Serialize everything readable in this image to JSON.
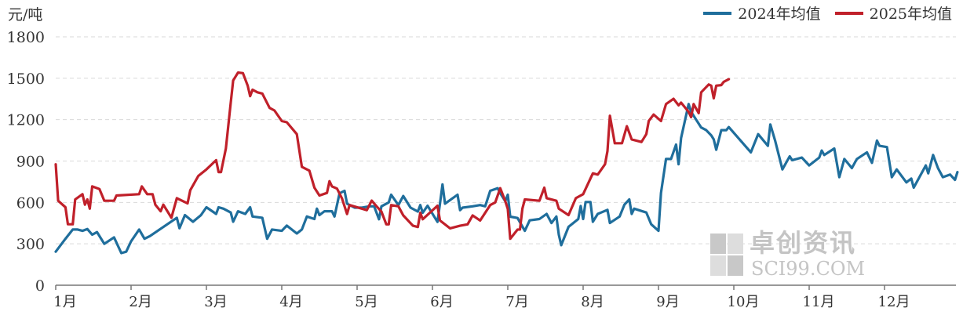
{
  "chart_data": {
    "type": "line",
    "unit_label": "元/吨",
    "yticks": [
      "0",
      "300",
      "600",
      "900",
      "1200",
      "1500",
      "1800"
    ],
    "ylim": [
      0,
      1800
    ],
    "xticks": [
      "1月",
      "2月",
      "3月",
      "4月",
      "5月",
      "6月",
      "7月",
      "8月",
      "9月",
      "10月",
      "11月",
      "12月"
    ],
    "grid": "horizontal dashed",
    "legend_position": "top-right",
    "series": [
      {
        "name": "2024年均值",
        "color": "#1f6e9c",
        "x": [
          "01-01",
          "01-05",
          "01-08",
          "01-10",
          "01-12",
          "01-14",
          "01-16",
          "01-18",
          "01-21",
          "01-25",
          "01-28",
          "01-30",
          "02-01",
          "02-04",
          "02-06",
          "02-08",
          "02-18",
          "02-19",
          "02-21",
          "02-24",
          "02-27",
          "03-01",
          "03-05",
          "03-06",
          "03-08",
          "03-11",
          "03-12",
          "03-14",
          "03-17",
          "03-19",
          "03-20",
          "03-24",
          "03-26",
          "03-28",
          "04-01",
          "04-03",
          "04-07",
          "04-09",
          "04-11",
          "04-14",
          "04-15",
          "04-16",
          "04-18",
          "04-21",
          "04-22",
          "04-24",
          "04-26",
          "04-27",
          "04-30",
          "05-03",
          "05-06",
          "05-08",
          "05-10",
          "05-11",
          "05-14",
          "05-15",
          "05-18",
          "05-20",
          "05-23",
          "05-26",
          "05-27",
          "05-28",
          "05-30",
          "06-03",
          "06-04",
          "06-05",
          "06-06",
          "06-11",
          "06-12",
          "06-13",
          "06-17",
          "06-20",
          "06-22",
          "06-24",
          "06-27",
          "06-28",
          "06-30",
          "07-01",
          "07-02",
          "07-05",
          "07-08",
          "07-10",
          "07-14",
          "07-17",
          "07-19",
          "07-21",
          "07-22",
          "07-23",
          "07-26",
          "07-30",
          "07-31",
          "08-01",
          "08-02",
          "08-04",
          "08-05",
          "08-07",
          "08-11",
          "08-12",
          "08-16",
          "08-18",
          "08-20",
          "08-21",
          "08-22",
          "08-27",
          "08-29",
          "09-01",
          "09-02",
          "09-04",
          "09-06",
          "09-08",
          "09-09",
          "09-10",
          "09-13",
          "09-14",
          "09-18",
          "09-20",
          "09-22",
          "09-23",
          "09-24",
          "09-26",
          "09-28",
          "09-29",
          "10-08",
          "10-11",
          "10-15",
          "10-16",
          "10-18",
          "10-21",
          "10-24",
          "10-25",
          "10-29",
          "11-01",
          "11-05",
          "11-06",
          "11-07",
          "11-11",
          "11-13",
          "11-15",
          "11-18",
          "11-20",
          "11-24",
          "11-26",
          "11-28",
          "11-29",
          "12-02",
          "12-04",
          "12-06",
          "12-10",
          "12-12",
          "12-13",
          "12-18",
          "12-19",
          "12-21",
          "12-23",
          "12-25",
          "12-28",
          "12-30",
          "12-31"
        ],
        "y": [
          243,
          337,
          404,
          404,
          394,
          407,
          366,
          385,
          300,
          347,
          233,
          243,
          318,
          404,
          337,
          356,
          489,
          413,
          508,
          460,
          508,
          565,
          517,
          565,
          555,
          527,
          460,
          536,
          517,
          565,
          498,
          489,
          337,
          404,
          394,
          432,
          375,
          404,
          498,
          480,
          555,
          508,
          536,
          536,
          498,
          666,
          684,
          591,
          562,
          562,
          572,
          572,
          478,
          572,
          600,
          656,
          581,
          647,
          562,
          534,
          581,
          525,
          576,
          459,
          591,
          731,
          591,
          656,
          544,
          562,
          572,
          581,
          572,
          684,
          703,
          666,
          609,
          656,
          497,
          487,
          394,
          470,
          480,
          517,
          451,
          498,
          366,
          290,
          423,
          480,
          574,
          480,
          603,
          603,
          460,
          517,
          546,
          451,
          498,
          584,
          622,
          517,
          555,
          527,
          442,
          394,
          669,
          915,
          915,
          1019,
          877,
          1067,
          1313,
          1256,
          1143,
          1124,
          1086,
          1057,
          982,
          1124,
          1124,
          1146,
          963,
          1095,
          1010,
          1165,
          1048,
          839,
          934,
          906,
          925,
          868,
          925,
          976,
          944,
          991,
          783,
          915,
          849,
          915,
          963,
          887,
          1048,
          1010,
          1001,
          783,
          839,
          745,
          773,
          707,
          868,
          811,
          944,
          849,
          783,
          802,
          764,
          820
        ]
      },
      {
        "name": "2025年均值",
        "color": "#c0202a",
        "x": [
          "01-01",
          "01-02",
          "01-05",
          "01-06",
          "01-08",
          "01-09",
          "01-12",
          "01-13",
          "01-14",
          "01-15",
          "01-16",
          "01-19",
          "01-21",
          "01-25",
          "01-26",
          "02-04",
          "02-05",
          "02-07",
          "02-09",
          "02-10",
          "02-12",
          "02-13",
          "02-16",
          "02-18",
          "02-22",
          "02-23",
          "02-26",
          "03-01",
          "03-05",
          "03-06",
          "03-07",
          "03-09",
          "03-11",
          "03-12",
          "03-14",
          "03-16",
          "03-18",
          "03-19",
          "03-20",
          "03-22",
          "03-24",
          "03-27",
          "03-29",
          "04-01",
          "04-03",
          "04-07",
          "04-09",
          "04-12",
          "04-14",
          "04-16",
          "04-19",
          "04-20",
          "04-21",
          "04-23",
          "04-25",
          "04-27",
          "04-28",
          "05-05",
          "05-07",
          "05-09",
          "05-11",
          "05-13",
          "05-14",
          "05-15",
          "05-18",
          "05-20",
          "05-24",
          "05-26",
          "05-27",
          "05-28",
          "06-03",
          "06-04",
          "06-08",
          "06-12",
          "06-15",
          "06-17",
          "06-20",
          "06-24",
          "06-26",
          "06-28",
          "06-30",
          "07-01",
          "07-02",
          "07-05",
          "07-06",
          "07-07",
          "07-08",
          "07-14",
          "07-16",
          "07-17",
          "07-21",
          "07-22",
          "07-26",
          "07-29",
          "08-01",
          "08-05",
          "08-07",
          "08-10",
          "08-11",
          "08-12",
          "08-14",
          "08-17",
          "08-19",
          "08-21",
          "08-25",
          "08-27",
          "08-28",
          "08-30",
          "09-02",
          "09-04",
          "09-07",
          "09-09",
          "09-10",
          "09-13",
          "09-14",
          "09-15",
          "09-17",
          "09-18",
          "09-21",
          "09-22",
          "09-23",
          "09-24",
          "09-26",
          "09-27",
          "09-29"
        ],
        "y": [
          876,
          612,
          565,
          442,
          442,
          622,
          660,
          584,
          622,
          555,
          716,
          697,
          612,
          612,
          650,
          660,
          716,
          660,
          660,
          584,
          536,
          584,
          489,
          631,
          593,
          688,
          792,
          839,
          906,
          820,
          820,
          991,
          1323,
          1484,
          1541,
          1537,
          1446,
          1370,
          1417,
          1398,
          1389,
          1285,
          1266,
          1190,
          1181,
          1095,
          858,
          830,
          707,
          650,
          669,
          754,
          716,
          700,
          628,
          516,
          581,
          544,
          613,
          572,
          534,
          441,
          441,
          581,
          572,
          506,
          431,
          422,
          525,
          478,
          576,
          469,
          412,
          431,
          441,
          506,
          469,
          581,
          600,
          703,
          609,
          553,
          337,
          403,
          404,
          555,
          622,
          612,
          707,
          631,
          612,
          555,
          508,
          631,
          660,
          811,
          802,
          877,
          972,
          1228,
          1029,
          1029,
          1152,
          1057,
          1038,
          1095,
          1190,
          1237,
          1190,
          1313,
          1351,
          1304,
          1323,
          1256,
          1218,
          1313,
          1247,
          1398,
          1455,
          1446,
          1355,
          1446,
          1450,
          1474,
          1493
        ]
      }
    ]
  },
  "watermark": {
    "cn": "卓创资讯",
    "en": "SCI99.COM"
  }
}
